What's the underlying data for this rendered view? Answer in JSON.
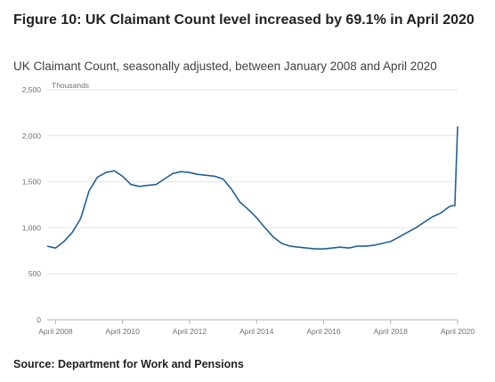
{
  "header": {
    "title": "Figure 10: UK Claimant Count level increased by 69.1% in April 2020",
    "subtitle": "UK Claimant Count, seasonally adjusted, between January 2008 and April 2020"
  },
  "footer": {
    "source": "Source: Department for Work and Pensions"
  },
  "chart_data": {
    "type": "line",
    "title": "Figure 10: UK Claimant Count level increased by 69.1% in April 2020",
    "subtitle": "UK Claimant Count, seasonally adjusted, between January 2008 and April 2020",
    "ylabel": "Thousands",
    "xlabel": "",
    "ylim": [
      0,
      2500
    ],
    "xlim": [
      "2008-01",
      "2020-04"
    ],
    "y_ticks": [
      0,
      500,
      1000,
      1500,
      2000,
      2500
    ],
    "y_tick_labels": [
      "0",
      "500",
      "1,000",
      "1,500",
      "2,000",
      "2,500"
    ],
    "x_ticks": [
      "2008-04",
      "2010-04",
      "2012-04",
      "2014-04",
      "2016-04",
      "2018-04",
      "2020-04"
    ],
    "x_tick_labels": [
      "April 2008",
      "April 2010",
      "April 2012",
      "April 2014",
      "April 2016",
      "April 2018",
      "April 2020"
    ],
    "grid": true,
    "line_color": "#206095",
    "series": [
      {
        "x": [
          "2008-01",
          "2008-04",
          "2008-07",
          "2008-10",
          "2009-01",
          "2009-04",
          "2009-07",
          "2009-10",
          "2010-01",
          "2010-04",
          "2010-07",
          "2010-10",
          "2011-01",
          "2011-04",
          "2011-07",
          "2011-10",
          "2012-01",
          "2012-04",
          "2012-07",
          "2012-10",
          "2013-01",
          "2013-04",
          "2013-07",
          "2013-10",
          "2014-01",
          "2014-04",
          "2014-07",
          "2014-10",
          "2015-01",
          "2015-04",
          "2015-07",
          "2015-10",
          "2016-01",
          "2016-04",
          "2016-07",
          "2016-10",
          "2017-01",
          "2017-04",
          "2017-07",
          "2017-10",
          "2018-01",
          "2018-04",
          "2018-07",
          "2018-10",
          "2019-01",
          "2019-04",
          "2019-07",
          "2019-10",
          "2020-01",
          "2020-02",
          "2020-03",
          "2020-04"
        ],
        "values": [
          800,
          780,
          850,
          950,
          1100,
          1400,
          1550,
          1600,
          1620,
          1560,
          1470,
          1450,
          1460,
          1470,
          1530,
          1590,
          1610,
          1600,
          1580,
          1570,
          1560,
          1530,
          1420,
          1280,
          1200,
          1110,
          1000,
          900,
          830,
          800,
          790,
          780,
          770,
          770,
          780,
          790,
          780,
          800,
          800,
          810,
          830,
          850,
          900,
          950,
          1000,
          1060,
          1120,
          1160,
          1230,
          1240,
          1240,
          2100
        ]
      }
    ]
  }
}
